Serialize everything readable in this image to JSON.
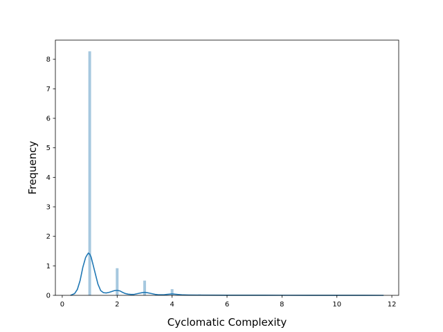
{
  "chart_data": {
    "type": "bar",
    "subtype": "histogram-with-kde",
    "title": "",
    "xlabel": "Cyclomatic Complexity",
    "ylabel": "Frequency",
    "xlim": [
      -0.25,
      12.25
    ],
    "ylim": [
      0,
      8.65
    ],
    "xticks": [
      0,
      2,
      4,
      6,
      8,
      10,
      12
    ],
    "yticks": [
      0,
      1,
      2,
      3,
      4,
      5,
      6,
      7,
      8
    ],
    "grid": false,
    "histogram": {
      "bin_width": 0.1,
      "color": "#a6c8df",
      "bars": [
        {
          "x": 1.0,
          "value": 8.27
        },
        {
          "x": 2.0,
          "value": 0.92
        },
        {
          "x": 3.0,
          "value": 0.5
        },
        {
          "x": 4.0,
          "value": 0.21
        },
        {
          "x": 5.0,
          "value": 0.03
        },
        {
          "x": 6.0,
          "value": 0.02
        },
        {
          "x": 7.0,
          "value": 0.01
        },
        {
          "x": 8.0,
          "value": 0.005
        },
        {
          "x": 9.0,
          "value": 0.005
        },
        {
          "x": 11.0,
          "value": 0.005
        }
      ]
    },
    "kde": {
      "color": "#1f77b4",
      "x": [
        0.3,
        0.45,
        0.55,
        0.65,
        0.75,
        0.85,
        0.9,
        0.95,
        1.0,
        1.05,
        1.1,
        1.2,
        1.3,
        1.4,
        1.5,
        1.6,
        1.7,
        1.8,
        1.9,
        2.0,
        2.1,
        2.2,
        2.3,
        2.4,
        2.5,
        2.6,
        2.7,
        2.8,
        2.9,
        3.0,
        3.1,
        3.2,
        3.3,
        3.4,
        3.5,
        3.6,
        3.7,
        3.8,
        3.9,
        4.0,
        4.1,
        4.2,
        4.4,
        4.6,
        5.0,
        6.0,
        7.0,
        8.0,
        9.0,
        10.0,
        11.0,
        11.7
      ],
      "y": [
        0.0,
        0.06,
        0.2,
        0.5,
        0.95,
        1.28,
        1.36,
        1.43,
        1.4,
        1.3,
        1.12,
        0.75,
        0.38,
        0.16,
        0.09,
        0.08,
        0.1,
        0.13,
        0.16,
        0.17,
        0.15,
        0.1,
        0.06,
        0.04,
        0.03,
        0.03,
        0.05,
        0.07,
        0.09,
        0.1,
        0.09,
        0.07,
        0.05,
        0.03,
        0.02,
        0.02,
        0.02,
        0.03,
        0.04,
        0.05,
        0.04,
        0.03,
        0.015,
        0.01,
        0.008,
        0.005,
        0.004,
        0.003,
        0.002,
        0.002,
        0.001,
        0.0
      ]
    }
  }
}
